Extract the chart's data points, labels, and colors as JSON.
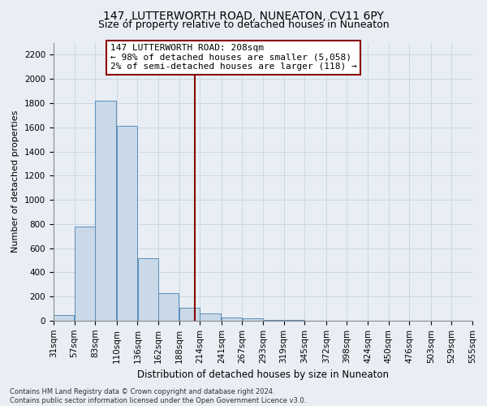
{
  "title": "147, LUTTERWORTH ROAD, NUNEATON, CV11 6PY",
  "subtitle": "Size of property relative to detached houses in Nuneaton",
  "xlabel": "Distribution of detached houses by size in Nuneaton",
  "ylabel": "Number of detached properties",
  "bin_labels": [
    "31sqm",
    "57sqm",
    "83sqm",
    "110sqm",
    "136sqm",
    "162sqm",
    "188sqm",
    "214sqm",
    "241sqm",
    "267sqm",
    "293sqm",
    "319sqm",
    "345sqm",
    "372sqm",
    "398sqm",
    "424sqm",
    "450sqm",
    "476sqm",
    "503sqm",
    "529sqm",
    "555sqm"
  ],
  "bin_edges": [
    31,
    57,
    83,
    110,
    136,
    162,
    188,
    214,
    241,
    267,
    293,
    319,
    345,
    372,
    398,
    424,
    450,
    476,
    503,
    529,
    555
  ],
  "bar_heights": [
    50,
    780,
    1820,
    1610,
    520,
    230,
    110,
    60,
    30,
    20,
    10,
    5,
    0,
    0,
    0,
    0,
    0,
    0,
    0,
    0
  ],
  "bar_color": "#c9d9e8",
  "bar_edge_color": "#5b8db8",
  "vline_x": 208,
  "vline_color": "#8b0000",
  "annotation_line1": "147 LUTTERWORTH ROAD: 208sqm",
  "annotation_line2": "← 98% of detached houses are smaller (5,058)",
  "annotation_line3": "2% of semi-detached houses are larger (118) →",
  "annotation_box_color": "#ffffff",
  "annotation_box_edge_color": "#8b0000",
  "ylim": [
    0,
    2300
  ],
  "yticks": [
    0,
    200,
    400,
    600,
    800,
    1000,
    1200,
    1400,
    1600,
    1800,
    2000,
    2200
  ],
  "grid_color": "#c8d4e0",
  "background_color": "#e8eef4",
  "footnote": "Contains HM Land Registry data © Crown copyright and database right 2024.\nContains public sector information licensed under the Open Government Licence v3.0.",
  "title_fontsize": 10,
  "subtitle_fontsize": 9,
  "xlabel_fontsize": 8.5,
  "ylabel_fontsize": 8,
  "tick_fontsize": 7.5,
  "annotation_fontsize": 8
}
